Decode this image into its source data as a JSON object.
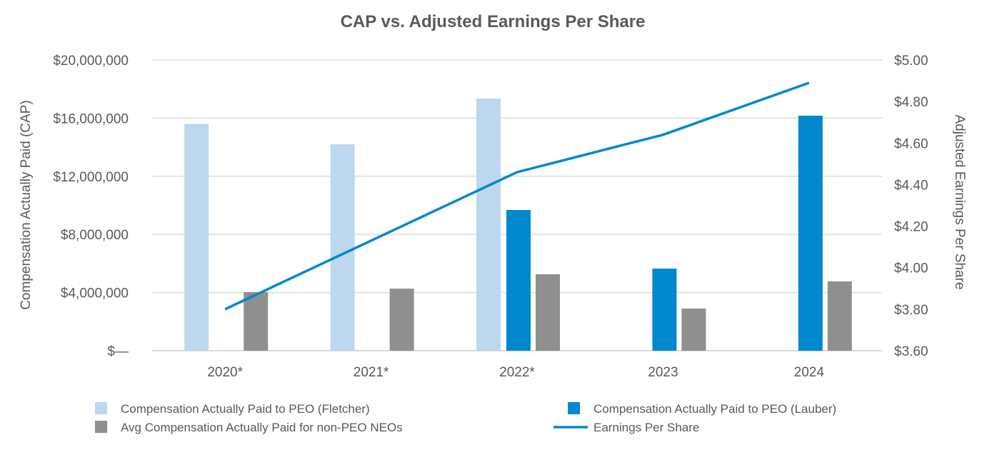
{
  "chart_data": {
    "type": "bar",
    "title": "CAP vs. Adjusted Earnings Per Share",
    "categories": [
      "2020*",
      "2021*",
      "2022*",
      "2023",
      "2024"
    ],
    "ylabel": "Compensation Actually Paid (CAP)",
    "y2label": "Adjusted Earnings Per Share",
    "ylim": [
      0,
      20000000
    ],
    "y2lim": [
      3.6,
      5.0
    ],
    "yticks": [
      "$—",
      "$4,000,000",
      "$8,000,000",
      "$12,000,000",
      "$16,000,000",
      "$20,000,000"
    ],
    "y2ticks": [
      "$3.60",
      "$3.80",
      "$4.00",
      "$4.20",
      "$4.40",
      "$4.60",
      "$4.80",
      "$5.00"
    ],
    "grid": true,
    "legend_position": "bottom",
    "series": [
      {
        "name": "Compensation Actually Paid to PEO (Fletcher)",
        "type": "bar",
        "axis": "left",
        "color": "#bdd7ee",
        "values": [
          15600000,
          14200000,
          17350000,
          null,
          null
        ]
      },
      {
        "name": "Compensation Actually Paid to PEO (Lauber)",
        "type": "bar",
        "axis": "left",
        "color": "#0088cf",
        "values": [
          null,
          null,
          9680000,
          5650000,
          16170000
        ]
      },
      {
        "name": "Avg Compensation Actually Paid for non-PEO NEOs",
        "type": "bar",
        "axis": "left",
        "color": "#8f8f8f",
        "values": [
          4030000,
          4270000,
          5260000,
          2900000,
          4770000
        ]
      },
      {
        "name": "Earnings Per Share",
        "type": "line",
        "axis": "right",
        "color": "#0088cf",
        "values": [
          3.8,
          4.13,
          4.46,
          4.64,
          4.89
        ]
      }
    ]
  }
}
